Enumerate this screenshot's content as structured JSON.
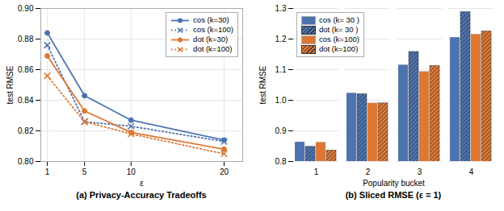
{
  "chart_data": [
    {
      "type": "line",
      "title": "(a) Privacy-Accuracy Tradeoffs",
      "xlabel": "ε",
      "ylabel": "test RMSE",
      "x": [
        1,
        5,
        10,
        20
      ],
      "series": [
        {
          "name": "cos (k=30)",
          "color": "#4C72B0",
          "marker": "circle",
          "line_style": "solid",
          "values": [
            0.884,
            0.843,
            0.827,
            0.814
          ]
        },
        {
          "name": "cos (k=100)",
          "color": "#4C72B0",
          "marker": "x",
          "line_style": "dotted",
          "values": [
            0.876,
            0.826,
            0.823,
            0.813
          ]
        },
        {
          "name": "dot (k=30)",
          "color": "#DD7733",
          "marker": "circle",
          "line_style": "solid",
          "values": [
            0.869,
            0.833,
            0.819,
            0.808
          ]
        },
        {
          "name": "dot (k=100)",
          "color": "#DD7733",
          "marker": "x",
          "line_style": "dotted",
          "values": [
            0.856,
            0.826,
            0.818,
            0.805
          ]
        }
      ],
      "xlim": [
        0.3,
        22
      ],
      "xticks": [
        1,
        5,
        10,
        20
      ],
      "ylim": [
        0.8,
        0.9
      ],
      "yticks": [
        {
          "value": 0.8,
          "label": "0.80"
        },
        0.82,
        0.84,
        0.86,
        0.88,
        {
          "value": 0.9,
          "label": "0.90"
        }
      ],
      "grid": true,
      "legend": "upper right"
    },
    {
      "type": "bar",
      "title": "(b) Sliced RMSE (ε = 1)",
      "xlabel": "Popularity bucket",
      "ylabel": "test RMSE",
      "categories": [
        "1",
        "2",
        "3",
        "4"
      ],
      "series": [
        {
          "name": "cos (k= 30 )",
          "color": "#4C72B0",
          "line_style": "solid",
          "values": [
            0.863,
            1.023,
            1.115,
            1.205
          ]
        },
        {
          "name": "dot (k= 30 )",
          "color": "#4C72B0",
          "line_style": "hatched",
          "values": [
            0.848,
            1.02,
            1.158,
            1.288
          ]
        },
        {
          "name": "cos (k=100)",
          "color": "#DD7733",
          "line_style": "solid",
          "values": [
            0.862,
            0.99,
            1.093,
            1.215
          ]
        },
        {
          "name": "dot (k=100)",
          "color": "#DD7733",
          "line_style": "hatched",
          "values": [
            0.836,
            0.99,
            1.112,
            1.225
          ]
        }
      ],
      "ylim": [
        0.8,
        1.3
      ],
      "yticks": [
        0.8,
        0.9,
        {
          "value": 1,
          "label": "1.0"
        },
        1.1,
        1.2,
        1.3
      ],
      "grid": true,
      "legend": "upper left"
    }
  ]
}
